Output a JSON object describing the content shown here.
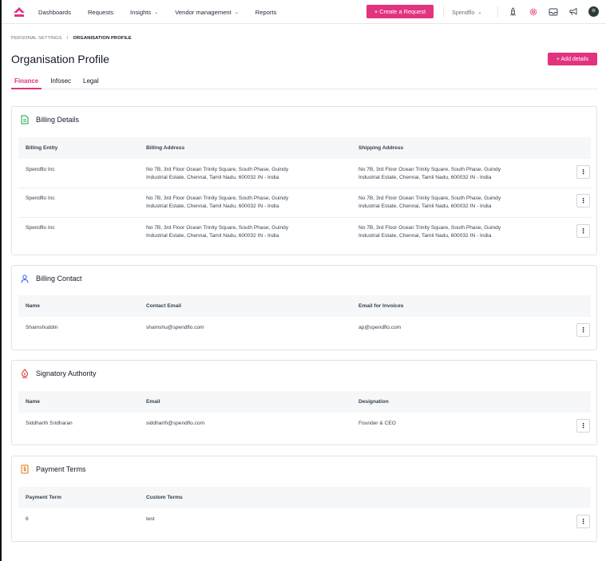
{
  "nav": {
    "items": [
      {
        "label": "Dashboards",
        "dropdown": false
      },
      {
        "label": "Requests",
        "dropdown": false
      },
      {
        "label": "Insights",
        "dropdown": true
      },
      {
        "label": "Vendor management",
        "dropdown": true
      },
      {
        "label": "Reports",
        "dropdown": false
      }
    ],
    "create_label": "+ Create a Request",
    "org_label": "Spendflo",
    "icons": [
      "rocket-icon",
      "settings-gear-icon",
      "inbox-icon",
      "announcement-icon",
      "avatar"
    ],
    "accent_color": "#e2337f"
  },
  "breadcrumb": {
    "parent": "PERSONAL SETTINGS",
    "separator": "/",
    "current": "ORGANISATION PROFILE"
  },
  "page": {
    "title": "Organisation Profile",
    "add_details_label": "+ Add details"
  },
  "tabs": [
    {
      "label": "Finance",
      "active": true
    },
    {
      "label": "Infosec",
      "active": false
    },
    {
      "label": "Legal",
      "active": false
    }
  ],
  "billing_details": {
    "title": "Billing Details",
    "columns": [
      "Billing Entity",
      "Billing Address",
      "Shipping Address"
    ],
    "rows": [
      {
        "entity": "Spendflo Inc",
        "billing_line1": "No 7B, 3rd Floor Ocean Trinity Square, South Phase, Guindy",
        "billing_line2": "Industrial Estate, Chennai, Tamil Nadu, 600032 IN - India",
        "shipping_line1": "No 7B, 3rd Floor Ocean Trinity Square, South Phase, Guindy",
        "shipping_line2": "Industrial Estate, Chennai, Tamil Nadu, 600032 IN - India"
      },
      {
        "entity": "Spendflo Inc",
        "billing_line1": "No 7B, 3rd Floor Ocean Trinity Square, South Phase, Guindy",
        "billing_line2": "Industrial Estate, Chennai, Tamil Nadu, 600032 IN - India",
        "shipping_line1": "No 7B, 3rd Floor Ocean Trinity Square, South Phase, Guindy",
        "shipping_line2": "Industrial Estate, Chennai, Tamil Nadu, 600032 IN - India"
      },
      {
        "entity": "Spendflo Inc",
        "billing_line1": "No 7B, 3rd Floor Ocean Trinity Square, South Phase, Guindy",
        "billing_line2": "Industrial Estate, Chennai, Tamil Nadu, 600032 IN - India",
        "shipping_line1": "No 7B, 3rd Floor Ocean Trinity Square, South Phase, Guindy",
        "shipping_line2": "Industrial Estate, Chennai, Tamil Nadu, 600032 IN - India"
      }
    ]
  },
  "billing_contact": {
    "title": "Billing Contact",
    "columns": [
      "Name",
      "Contact Email",
      "Email for Invoices"
    ],
    "rows": [
      {
        "name": "Shamshuddin",
        "contact_email": "shamshu@spendflo.com",
        "invoice_email": "ap@spendflo.com"
      }
    ]
  },
  "signatory": {
    "title": "Signatory Authority",
    "columns": [
      "Name",
      "Email",
      "Designation"
    ],
    "rows": [
      {
        "name": "Siddharth Sridharan",
        "email": "siddharth@spendflo.com",
        "designation": "Founder & CEO"
      }
    ]
  },
  "payment_terms": {
    "title": "Payment Terms",
    "columns": [
      "Payment Term",
      "Custom Terms"
    ],
    "rows": [
      {
        "term": "6",
        "custom": "test"
      }
    ]
  },
  "kebab_glyph": "⋮"
}
